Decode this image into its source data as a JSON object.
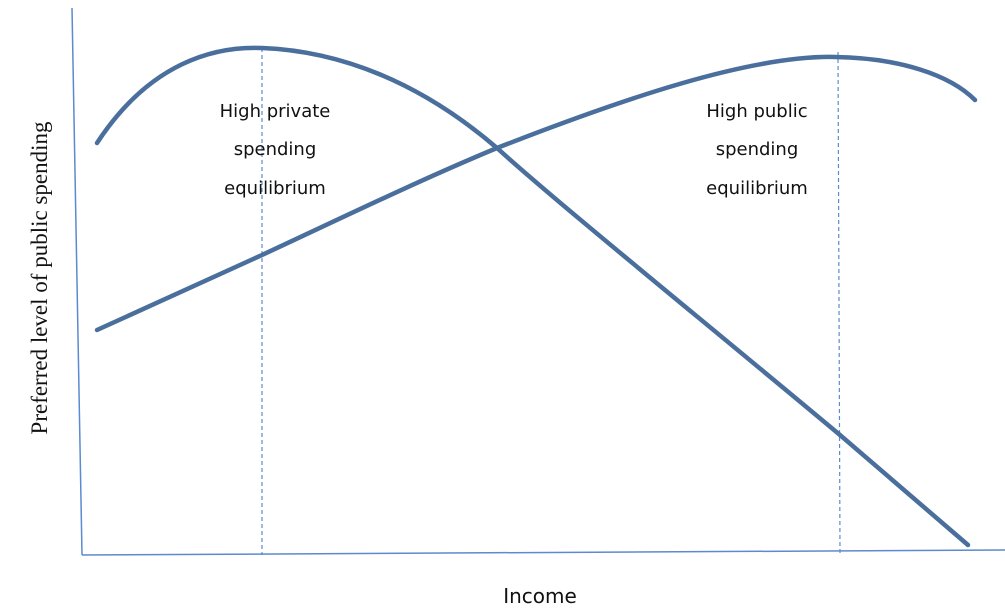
{
  "axes": {
    "y_label": "Preferred level of public spending",
    "x_label": "Income"
  },
  "annotations": [
    {
      "lines": [
        "High private",
        "spending",
        "equilibrium"
      ]
    },
    {
      "lines": [
        "High public",
        "spending",
        "equilibrium"
      ]
    }
  ]
}
